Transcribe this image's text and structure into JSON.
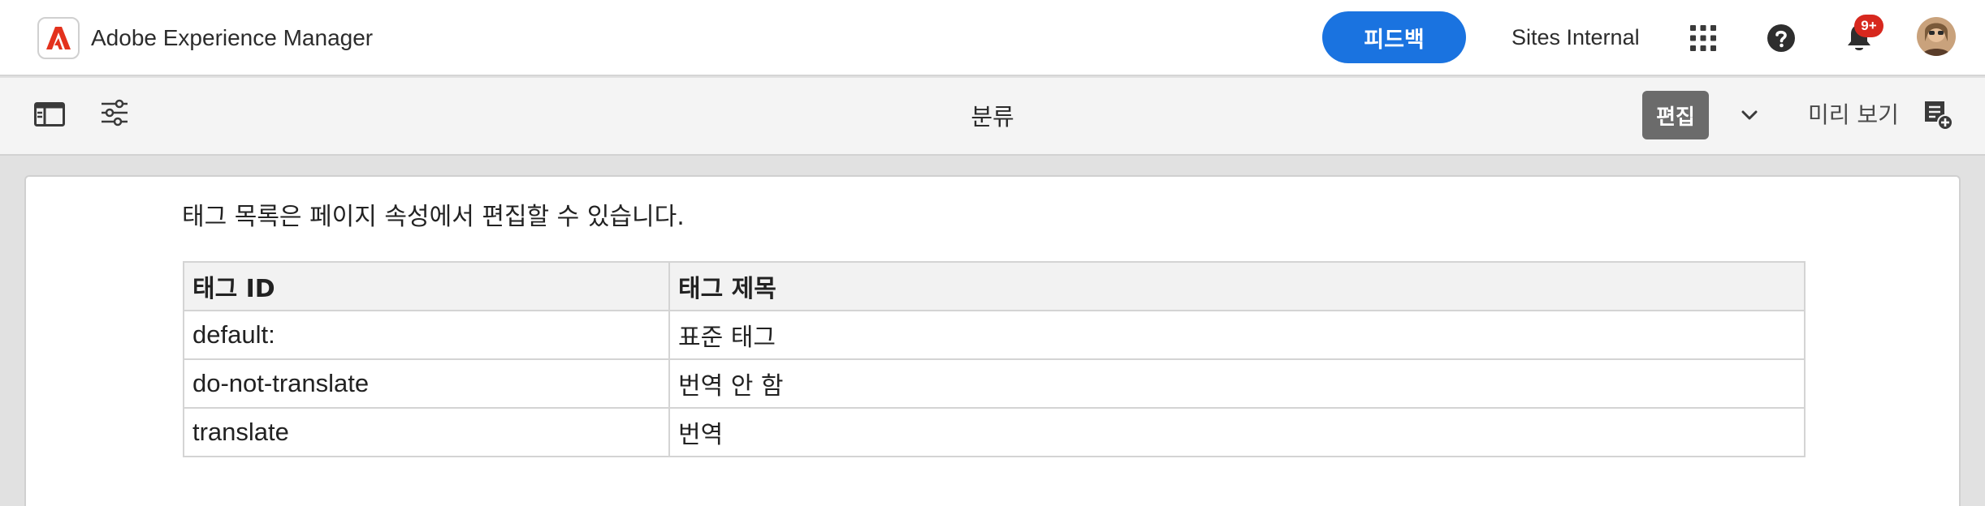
{
  "header": {
    "app_title": "Adobe Experience Manager",
    "feedback_label": "피드백",
    "site_name": "Sites Internal",
    "notification_count": "9+",
    "brand_color": "#e3321d",
    "accent_color": "#1a73e0",
    "icons": [
      "adobe-logo",
      "apps-grid-icon",
      "help-icon",
      "bell-icon",
      "avatar"
    ]
  },
  "toolbar": {
    "page_title": "분류",
    "edit_label": "편집",
    "preview_label": "미리 보기",
    "icons": [
      "side-panel-icon",
      "page-properties-icon",
      "chevron-down-icon",
      "annotate-icon"
    ]
  },
  "content": {
    "intro": "태그 목록은 페이지 속성에서 편집할 수 있습니다.",
    "table": {
      "headers": [
        "태그 ID",
        "태그 제목"
      ],
      "rows": [
        [
          "default:",
          "표준 태그"
        ],
        [
          "do-not-translate",
          "번역 안 함"
        ],
        [
          "translate",
          "번역"
        ]
      ]
    }
  }
}
